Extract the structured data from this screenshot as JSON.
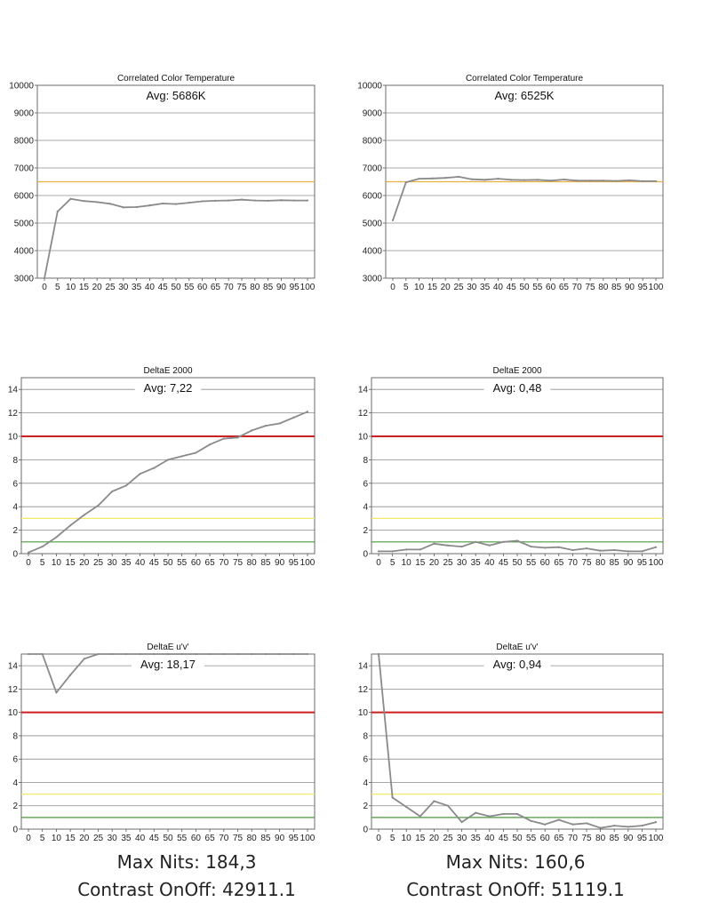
{
  "colors": {
    "gray_line": "#8a8a8a",
    "grid": "#8c8c8c",
    "red_ref": "#cc1f1f",
    "yellow_ref": "#f2e86a",
    "green_ref": "#4a9a3a",
    "orange_ref": "#e7b040"
  },
  "chart_data": [
    {
      "type": "line",
      "title": "Correlated Color Temperature",
      "annotation": "Avg: 5686K",
      "x": [
        0,
        5,
        10,
        15,
        20,
        25,
        30,
        35,
        40,
        45,
        50,
        55,
        60,
        65,
        70,
        75,
        80,
        85,
        90,
        95,
        100
      ],
      "xticks": [
        "0",
        "5",
        "10",
        "15",
        "20",
        "25",
        "30",
        "35",
        "40",
        "45",
        "50",
        "55",
        "60",
        "65",
        "70",
        "75",
        "80",
        "85",
        "90",
        "95",
        "100"
      ],
      "ylim": [
        3000,
        10000
      ],
      "yticks": [
        "3000",
        "4000",
        "5000",
        "6000",
        "7000",
        "8000",
        "9000",
        "10000"
      ],
      "series": [
        {
          "values": [
            2950,
            5420,
            5880,
            5800,
            5760,
            5700,
            5570,
            5580,
            5640,
            5710,
            5690,
            5740,
            5790,
            5810,
            5820,
            5850,
            5820,
            5810,
            5830,
            5820,
            5820
          ]
        }
      ],
      "reference_lines": [
        {
          "y": 6500,
          "color": "orange"
        }
      ]
    },
    {
      "type": "line",
      "title": "Correlated Color Temperature",
      "annotation": "Avg: 6525K",
      "x": [
        0,
        5,
        10,
        15,
        20,
        25,
        30,
        35,
        40,
        45,
        50,
        55,
        60,
        65,
        70,
        75,
        80,
        85,
        90,
        95,
        100
      ],
      "xticks": [
        "0",
        "5",
        "10",
        "15",
        "20",
        "25",
        "30",
        "35",
        "40",
        "45",
        "50",
        "55",
        "60",
        "65",
        "70",
        "75",
        "80",
        "85",
        "90",
        "95",
        "100"
      ],
      "ylim": [
        3000,
        10000
      ],
      "yticks": [
        "3000",
        "4000",
        "5000",
        "6000",
        "7000",
        "8000",
        "9000",
        "10000"
      ],
      "series": [
        {
          "values": [
            5100,
            6480,
            6610,
            6620,
            6640,
            6680,
            6590,
            6570,
            6610,
            6570,
            6560,
            6570,
            6540,
            6580,
            6540,
            6540,
            6540,
            6530,
            6550,
            6520,
            6520
          ]
        }
      ],
      "reference_lines": [
        {
          "y": 6500,
          "color": "orange"
        }
      ]
    },
    {
      "type": "line",
      "title": "DeltaE 2000",
      "annotation": "Avg: 7,22",
      "x": [
        0,
        5,
        10,
        15,
        20,
        25,
        30,
        35,
        40,
        45,
        50,
        55,
        60,
        65,
        70,
        75,
        80,
        85,
        90,
        95,
        100
      ],
      "xticks": [
        "0",
        "5",
        "10",
        "15",
        "20",
        "25",
        "30",
        "35",
        "40",
        "45",
        "50",
        "55",
        "60",
        "65",
        "70",
        "75",
        "80",
        "85",
        "90",
        "95",
        "100"
      ],
      "ylim": [
        0,
        15
      ],
      "yticks": [
        "0",
        "2",
        "4",
        "6",
        "8",
        "10",
        "12",
        "14"
      ],
      "series": [
        {
          "values": [
            0.1,
            0.6,
            1.4,
            2.4,
            3.3,
            4.1,
            5.3,
            5.8,
            6.8,
            7.3,
            8.0,
            8.3,
            8.6,
            9.3,
            9.8,
            9.9,
            10.5,
            10.9,
            11.1,
            11.6,
            12.1
          ]
        }
      ],
      "reference_lines": [
        {
          "y": 10,
          "color": "red"
        },
        {
          "y": 3,
          "color": "yellow"
        },
        {
          "y": 1,
          "color": "green"
        }
      ]
    },
    {
      "type": "line",
      "title": "DeltaE 2000",
      "annotation": "Avg: 0,48",
      "x": [
        0,
        5,
        10,
        15,
        20,
        25,
        30,
        35,
        40,
        45,
        50,
        55,
        60,
        65,
        70,
        75,
        80,
        85,
        90,
        95,
        100
      ],
      "xticks": [
        "0",
        "5",
        "10",
        "15",
        "20",
        "25",
        "30",
        "35",
        "40",
        "45",
        "50",
        "55",
        "60",
        "65",
        "70",
        "75",
        "80",
        "85",
        "90",
        "95",
        "100"
      ],
      "ylim": [
        0,
        15
      ],
      "yticks": [
        "0",
        "2",
        "4",
        "6",
        "8",
        "10",
        "12",
        "14"
      ],
      "series": [
        {
          "values": [
            0.2,
            0.2,
            0.35,
            0.35,
            0.85,
            0.7,
            0.6,
            1.0,
            0.7,
            1.0,
            1.1,
            0.6,
            0.5,
            0.55,
            0.3,
            0.45,
            0.25,
            0.3,
            0.2,
            0.2,
            0.55
          ]
        }
      ],
      "reference_lines": [
        {
          "y": 10,
          "color": "red"
        },
        {
          "y": 3,
          "color": "yellow"
        },
        {
          "y": 1,
          "color": "green"
        }
      ]
    },
    {
      "type": "line",
      "title": "DeltaE u'v'",
      "annotation": "Avg: 18,17",
      "x": [
        0,
        5,
        10,
        15,
        20,
        25,
        30,
        35,
        40,
        45,
        50,
        55,
        60,
        65,
        70,
        75,
        80,
        85,
        90,
        95,
        100
      ],
      "xticks": [
        "0",
        "5",
        "10",
        "15",
        "20",
        "25",
        "30",
        "35",
        "40",
        "45",
        "50",
        "55",
        "60",
        "65",
        "70",
        "75",
        "80",
        "85",
        "90",
        "95",
        "100"
      ],
      "ylim": [
        0,
        15
      ],
      "yticks": [
        "0",
        "2",
        "4",
        "6",
        "8",
        "10",
        "12",
        "14"
      ],
      "series": [
        {
          "values": [
            15,
            15,
            11.7,
            13.2,
            14.6,
            15,
            15,
            15,
            15,
            15,
            15,
            15,
            15,
            15,
            15,
            15,
            15,
            15,
            15,
            15,
            15
          ]
        }
      ],
      "reference_lines": [
        {
          "y": 10,
          "color": "red"
        },
        {
          "y": 3,
          "color": "yellow"
        },
        {
          "y": 1,
          "color": "green"
        }
      ]
    },
    {
      "type": "line",
      "title": "DeltaE u'v'",
      "annotation": "Avg: 0,94",
      "x": [
        0,
        5,
        10,
        15,
        20,
        25,
        30,
        35,
        40,
        45,
        50,
        55,
        60,
        65,
        70,
        75,
        80,
        85,
        90,
        95,
        100
      ],
      "xticks": [
        "0",
        "5",
        "10",
        "15",
        "20",
        "25",
        "30",
        "35",
        "40",
        "45",
        "50",
        "55",
        "60",
        "65",
        "70",
        "75",
        "80",
        "85",
        "90",
        "95",
        "100"
      ],
      "ylim": [
        0,
        15
      ],
      "yticks": [
        "0",
        "2",
        "4",
        "6",
        "8",
        "10",
        "12",
        "14"
      ],
      "series": [
        {
          "values": [
            15,
            2.7,
            1.9,
            1.1,
            2.4,
            2.0,
            0.6,
            1.4,
            1.1,
            1.3,
            1.3,
            0.7,
            0.4,
            0.8,
            0.4,
            0.5,
            0.1,
            0.3,
            0.2,
            0.3,
            0.6
          ]
        }
      ],
      "reference_lines": [
        {
          "y": 10,
          "color": "red"
        },
        {
          "y": 3,
          "color": "yellow"
        },
        {
          "y": 1,
          "color": "green"
        }
      ]
    }
  ],
  "summary": {
    "left": {
      "max_nits": "Max Nits: 184,3",
      "contrast": "Contrast OnOff: 42911.1"
    },
    "right": {
      "max_nits": "Max Nits: 160,6",
      "contrast": "Contrast OnOff: 51119.1"
    }
  }
}
